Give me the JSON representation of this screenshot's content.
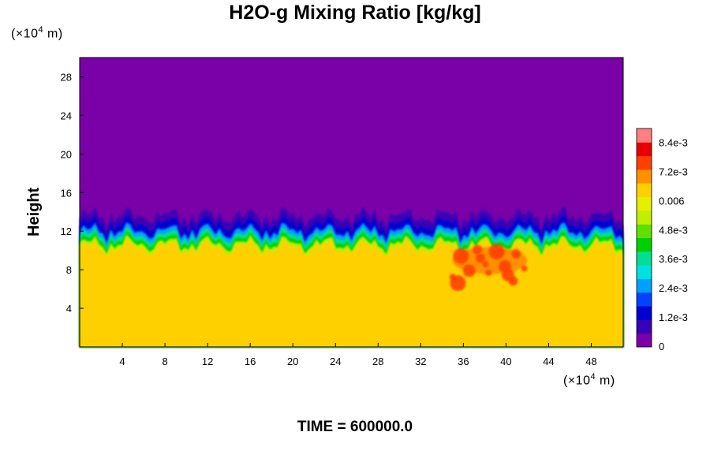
{
  "chart_data": {
    "type": "heatmap",
    "title": "H2O-g Mixing Ratio [kg/kg]",
    "ylabel": "Height",
    "y_unit_prefix": "(×10",
    "y_unit_exp": "4",
    "y_unit_suffix": " m)",
    "x_unit_prefix": "(×10",
    "x_unit_exp": "4",
    "x_unit_suffix": " m)",
    "xlim": [
      0,
      51
    ],
    "ylim": [
      0,
      30
    ],
    "x_ticks": [
      4,
      8,
      12,
      16,
      20,
      24,
      28,
      32,
      36,
      40,
      44,
      48
    ],
    "y_ticks": [
      4,
      8,
      12,
      16,
      20,
      24,
      28
    ],
    "colorbar": {
      "min": 0,
      "max": 0.009,
      "tick_values": [
        0,
        0.0012,
        0.0024,
        0.0036,
        0.0048,
        0.006,
        0.0072,
        0.0084
      ],
      "tick_labels": [
        "0",
        "1.2e-3",
        "2.4e-3",
        "3.6e-3",
        "4.8e-3",
        "0.006",
        "7.2e-3",
        "8.4e-3"
      ],
      "colors": [
        "#7a00a8",
        "#3a00b5",
        "#0000d0",
        "#0044ff",
        "#00a0ff",
        "#00e0e0",
        "#00e090",
        "#00d000",
        "#60e000",
        "#c0ef00",
        "#e4f000",
        "#ffd000",
        "#ff9000",
        "#ff4000",
        "#e80000",
        "#ff8080"
      ]
    },
    "lower_layer_top_height": 10.3,
    "lower_layer_mixing_ratio": 0.0064,
    "upper_layer_mixing_ratio": 0,
    "moist_cell_x_range": [
      35,
      42
    ],
    "moist_cell_height_range": [
      6.5,
      10.2
    ],
    "moist_cell_mixing_ratio": 0.0078
  },
  "footer": {
    "time_label": "TIME = 600000.0"
  }
}
